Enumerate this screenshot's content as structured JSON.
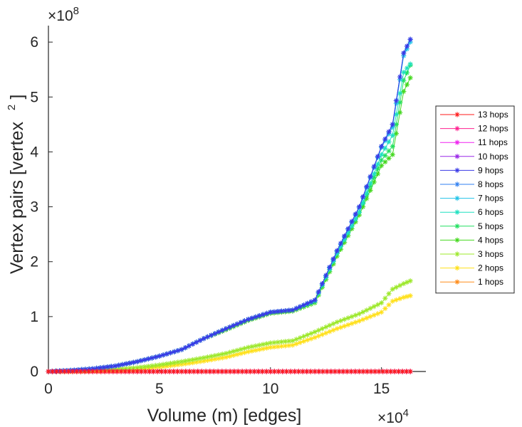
{
  "chart_data": {
    "type": "line",
    "xlabel": "Volume (m) [edges]",
    "ylabel": "Vertex pairs [vertex",
    "ylabel_sup": "2",
    "ylabel_close": "]",
    "x_exponent": {
      "base": "×10",
      "power": "4"
    },
    "y_exponent": {
      "base": "×10",
      "power": "8"
    },
    "xlim": [
      0,
      17
    ],
    "ylim": [
      0,
      6.3
    ],
    "xticks": [
      0,
      5,
      10,
      15
    ],
    "xtick_labels": [
      "0",
      "5",
      "10",
      "15"
    ],
    "yticks": [
      0,
      1,
      2,
      3,
      4,
      5,
      6
    ],
    "ytick_labels": [
      "0",
      "1",
      "2",
      "3",
      "4",
      "5",
      "6"
    ],
    "marker": "asterisk",
    "legend_position": "right",
    "series": [
      {
        "name": "13 hops",
        "color": "#ff1a1a",
        "x": [
          0,
          2,
          4,
          6,
          8,
          10,
          12,
          14,
          16.3
        ],
        "y": [
          0,
          0,
          0,
          0,
          0,
          0,
          0,
          0,
          0
        ]
      },
      {
        "name": "12 hops",
        "color": "#ff1f8f",
        "x": [
          0,
          2,
          4,
          6,
          8,
          10,
          12,
          14,
          16.3
        ],
        "y": [
          0,
          0,
          0,
          0,
          0,
          0,
          0,
          0,
          0
        ]
      },
      {
        "name": "11 hops",
        "color": "#ef22ef",
        "x": [
          0,
          2,
          4,
          6,
          8,
          10,
          12,
          14,
          16.3
        ],
        "y": [
          0,
          0,
          0,
          0,
          0,
          0,
          0,
          0,
          0
        ]
      },
      {
        "name": "10 hops",
        "color": "#9a28e8",
        "x": [
          0,
          2,
          4,
          6,
          8,
          10,
          12,
          14,
          16.3
        ],
        "y": [
          0,
          0,
          0,
          0,
          0,
          0,
          0,
          0,
          0
        ]
      },
      {
        "name": "9 hops",
        "color": "#3a3ae6",
        "x": [
          0,
          1,
          2,
          3,
          4,
          5,
          6,
          7,
          8,
          9,
          10,
          11,
          12,
          13,
          14,
          15,
          15.5,
          16,
          16.3
        ],
        "y": [
          0,
          0.02,
          0.05,
          0.1,
          0.18,
          0.28,
          0.4,
          0.6,
          0.78,
          0.95,
          1.08,
          1.12,
          1.3,
          2.2,
          3.0,
          4.1,
          4.5,
          5.8,
          6.05
        ]
      },
      {
        "name": "8 hops",
        "color": "#2f7ff0",
        "x": [
          0,
          1,
          2,
          3,
          4,
          5,
          6,
          7,
          8,
          9,
          10,
          11,
          12,
          13,
          14,
          15,
          15.5,
          16,
          16.3
        ],
        "y": [
          0,
          0.02,
          0.05,
          0.1,
          0.18,
          0.28,
          0.4,
          0.6,
          0.78,
          0.95,
          1.08,
          1.12,
          1.3,
          2.2,
          3.0,
          4.1,
          4.5,
          5.8,
          6.05
        ]
      },
      {
        "name": "7 hops",
        "color": "#22c3e8",
        "x": [
          0,
          1,
          2,
          3,
          4,
          5,
          6,
          7,
          8,
          9,
          10,
          11,
          12,
          13,
          14,
          15,
          15.5,
          16,
          16.3
        ],
        "y": [
          0,
          0.02,
          0.05,
          0.1,
          0.18,
          0.28,
          0.4,
          0.6,
          0.78,
          0.95,
          1.08,
          1.12,
          1.3,
          2.18,
          2.98,
          4.08,
          4.45,
          5.75,
          6.0
        ]
      },
      {
        "name": "6 hops",
        "color": "#1ee0c0",
        "x": [
          0,
          1,
          2,
          3,
          4,
          5,
          6,
          7,
          8,
          9,
          10,
          11,
          12,
          13,
          14,
          15,
          15.5,
          16,
          16.3
        ],
        "y": [
          0,
          0.02,
          0.05,
          0.1,
          0.18,
          0.28,
          0.4,
          0.6,
          0.78,
          0.95,
          1.08,
          1.12,
          1.28,
          2.15,
          2.9,
          3.95,
          4.3,
          5.45,
          5.6
        ]
      },
      {
        "name": "5 hops",
        "color": "#22e060",
        "x": [
          0,
          1,
          2,
          3,
          4,
          5,
          6,
          7,
          8,
          9,
          10,
          11,
          12,
          13,
          14,
          15,
          15.5,
          16,
          16.3
        ],
        "y": [
          0,
          0.02,
          0.05,
          0.1,
          0.18,
          0.28,
          0.4,
          0.6,
          0.78,
          0.95,
          1.08,
          1.12,
          1.28,
          2.15,
          2.9,
          3.85,
          4.1,
          5.3,
          5.58
        ]
      },
      {
        "name": "4 hops",
        "color": "#44d81e",
        "x": [
          0,
          1,
          2,
          3,
          4,
          5,
          6,
          7,
          8,
          9,
          10,
          11,
          12,
          13,
          14,
          15,
          15.5,
          16,
          16.3
        ],
        "y": [
          0,
          0.02,
          0.05,
          0.1,
          0.18,
          0.28,
          0.4,
          0.6,
          0.76,
          0.93,
          1.06,
          1.1,
          1.25,
          2.1,
          2.85,
          3.75,
          3.95,
          5.1,
          5.35
        ]
      },
      {
        "name": "3 hops",
        "color": "#9ce82a",
        "x": [
          0,
          1,
          2,
          3,
          4,
          5,
          6,
          7,
          8,
          9,
          10,
          11,
          12,
          13,
          14,
          15,
          15.5,
          16,
          16.3
        ],
        "y": [
          0,
          0.01,
          0.02,
          0.04,
          0.07,
          0.12,
          0.18,
          0.25,
          0.33,
          0.44,
          0.52,
          0.56,
          0.72,
          0.9,
          1.05,
          1.25,
          1.5,
          1.6,
          1.65
        ]
      },
      {
        "name": "2 hops",
        "color": "#ffe01a",
        "x": [
          0,
          1,
          2,
          3,
          4,
          5,
          6,
          7,
          8,
          9,
          10,
          11,
          12,
          13,
          14,
          15,
          15.5,
          16,
          16.3
        ],
        "y": [
          0,
          0.0,
          0.01,
          0.02,
          0.04,
          0.08,
          0.13,
          0.19,
          0.26,
          0.36,
          0.44,
          0.48,
          0.62,
          0.78,
          0.92,
          1.08,
          1.28,
          1.35,
          1.38
        ]
      },
      {
        "name": "1 hops",
        "color": "#ff8c1a",
        "x": [
          0,
          2,
          4,
          6,
          8,
          10,
          12,
          14,
          16.3
        ],
        "y": [
          0,
          0,
          0,
          0,
          0,
          0,
          0,
          0,
          0
        ]
      }
    ]
  }
}
